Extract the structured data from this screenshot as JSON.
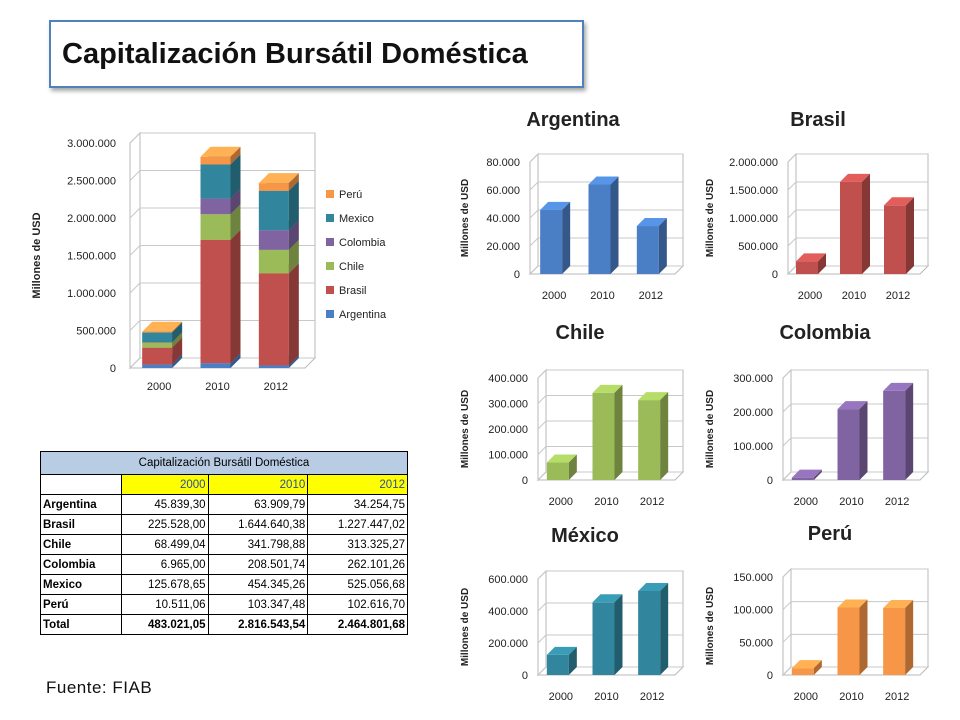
{
  "page_title": "Capitalización Bursátil Doméstica",
  "source_note": "Fuente: FIAB",
  "colors": {
    "Argentina": "#4a7ec5",
    "Brasil": "#c0504d",
    "Chile": "#9bbb59",
    "Colombia": "#8064a2",
    "Mexico": "#31859c",
    "Perú": "#f79646",
    "title_border": "#4f81bd",
    "table_header": "#b8cce4",
    "table_year": "#ffff00"
  },
  "table": {
    "caption": "Capitalización Bursátil Doméstica",
    "years": [
      "2000",
      "2010",
      "2012"
    ],
    "rows": [
      {
        "label": "Argentina",
        "values": [
          "45.839,30",
          "63.909,79",
          "34.254,75"
        ]
      },
      {
        "label": "Brasil",
        "values": [
          "225.528,00",
          "1.644.640,38",
          "1.227.447,02"
        ]
      },
      {
        "label": "Chile",
        "values": [
          "68.499,04",
          "341.798,88",
          "313.325,27"
        ]
      },
      {
        "label": "Colombia",
        "values": [
          "6.965,00",
          "208.501,74",
          "262.101,26"
        ]
      },
      {
        "label": "Mexico",
        "values": [
          "125.678,65",
          "454.345,26",
          "525.056,68"
        ]
      },
      {
        "label": "Perú",
        "values": [
          "10.511,06",
          "103.347,48",
          "102.616,70"
        ]
      }
    ],
    "total": {
      "label": "Total",
      "values": [
        "483.021,05",
        "2.816.543,54",
        "2.464.801,68"
      ]
    }
  },
  "chart_data": [
    {
      "type": "bar",
      "stacked": true,
      "title": "",
      "ylabel": "Millones de USD",
      "categories": [
        "2000",
        "2010",
        "2012"
      ],
      "ylim": [
        0,
        3000000
      ],
      "yticks": [
        "0",
        "500.000",
        "1.000.000",
        "1.500.000",
        "2.000.000",
        "2.500.000",
        "3.000.000"
      ],
      "legend_position": "right",
      "series": [
        {
          "name": "Argentina",
          "values": [
            45839.3,
            63909.79,
            34254.75
          ]
        },
        {
          "name": "Brasil",
          "values": [
            225528.0,
            1644640.38,
            1227447.02
          ]
        },
        {
          "name": "Chile",
          "values": [
            68499.04,
            341798.88,
            313325.27
          ]
        },
        {
          "name": "Colombia",
          "values": [
            6965.0,
            208501.74,
            262101.26
          ]
        },
        {
          "name": "Mexico",
          "values": [
            125678.65,
            454345.26,
            525056.68
          ]
        },
        {
          "name": "Perú",
          "values": [
            10511.06,
            103347.48,
            102616.7
          ]
        }
      ]
    },
    {
      "type": "bar",
      "title": "Argentina",
      "ylabel": "Millones de USD",
      "categories": [
        "2000",
        "2010",
        "2012"
      ],
      "values": [
        45839.3,
        63909.79,
        34254.75
      ],
      "ylim": [
        0,
        80000
      ],
      "yticks": [
        "0",
        "20.000",
        "40.000",
        "60.000",
        "80.000"
      ]
    },
    {
      "type": "bar",
      "title": "Brasil",
      "ylabel": "Millones de USD",
      "categories": [
        "2000",
        "2010",
        "2012"
      ],
      "values": [
        225528.0,
        1644640.38,
        1227447.02
      ],
      "ylim": [
        0,
        2000000
      ],
      "yticks": [
        "0",
        "500.000",
        "1.000.000",
        "1.500.000",
        "2.000.000"
      ]
    },
    {
      "type": "bar",
      "title": "Chile",
      "ylabel": "Millones de USD",
      "categories": [
        "2000",
        "2010",
        "2012"
      ],
      "values": [
        68499.04,
        341798.88,
        313325.27
      ],
      "ylim": [
        0,
        400000
      ],
      "yticks": [
        "0",
        "100.000",
        "200.000",
        "300.000",
        "400.000"
      ]
    },
    {
      "type": "bar",
      "title": "Colombia",
      "ylabel": "Millones de USD",
      "categories": [
        "2000",
        "2010",
        "2012"
      ],
      "values": [
        6965.0,
        208501.74,
        262101.26
      ],
      "ylim": [
        0,
        300000
      ],
      "yticks": [
        "0",
        "100.000",
        "200.000",
        "300.000"
      ]
    },
    {
      "type": "bar",
      "title": "México",
      "ylabel": "Millones de USD",
      "categories": [
        "2000",
        "2010",
        "2012"
      ],
      "values": [
        125678.65,
        454345.26,
        525056.68
      ],
      "ylim": [
        0,
        600000
      ],
      "yticks": [
        "0",
        "200.000",
        "400.000",
        "600.000"
      ]
    },
    {
      "type": "bar",
      "title": "Perú",
      "ylabel": "Millones de USD",
      "categories": [
        "2000",
        "2010",
        "2012"
      ],
      "values": [
        10511.06,
        103347.48,
        102616.7
      ],
      "ylim": [
        0,
        150000
      ],
      "yticks": [
        "0",
        "50.000",
        "100.000",
        "150.000"
      ]
    }
  ]
}
